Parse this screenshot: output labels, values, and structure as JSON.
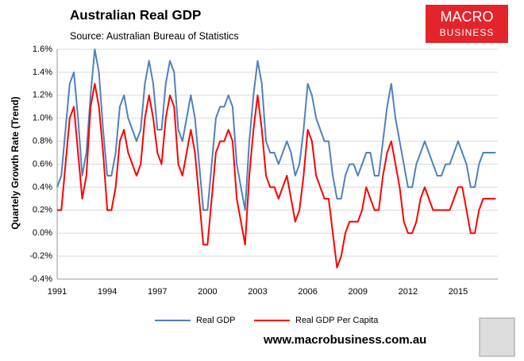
{
  "chart_data": {
    "type": "line",
    "title": "Australian Real GDP",
    "subtitle": "Source: Australian Bureau of Statistics",
    "ylabel": "Quartely Growth Rate (Trend)",
    "logo": [
      "MACRO",
      "BUSINESS"
    ],
    "website": "www.macrobusiness.com.au",
    "categories": [
      "1991",
      null,
      null,
      null,
      null,
      null,
      null,
      null,
      null,
      null,
      null,
      null,
      "1994",
      null,
      null,
      null,
      null,
      null,
      null,
      null,
      null,
      null,
      null,
      null,
      "1997",
      null,
      null,
      null,
      null,
      null,
      null,
      null,
      null,
      null,
      null,
      null,
      "2000",
      null,
      null,
      null,
      null,
      null,
      null,
      null,
      null,
      null,
      null,
      null,
      "2003",
      null,
      null,
      null,
      null,
      null,
      null,
      null,
      null,
      null,
      null,
      null,
      "2006",
      null,
      null,
      null,
      null,
      null,
      null,
      null,
      null,
      null,
      null,
      null,
      "2009",
      null,
      null,
      null,
      null,
      null,
      null,
      null,
      null,
      null,
      null,
      null,
      "2012",
      null,
      null,
      null,
      null,
      null,
      null,
      null,
      null,
      null,
      null,
      null,
      "2015",
      null,
      null,
      null,
      null,
      null,
      null,
      null,
      null,
      null
    ],
    "series": [
      {
        "name": "Real GDP",
        "color": "#4f81bd",
        "values": [
          0.4,
          0.5,
          0.9,
          1.3,
          1.4,
          1.0,
          0.5,
          0.7,
          1.2,
          1.6,
          1.4,
          0.9,
          0.5,
          0.5,
          0.7,
          1.1,
          1.2,
          1.0,
          0.9,
          0.8,
          0.9,
          1.3,
          1.5,
          1.3,
          0.9,
          0.9,
          1.3,
          1.5,
          1.4,
          0.9,
          0.8,
          1.0,
          1.2,
          1.0,
          0.6,
          0.2,
          0.2,
          0.6,
          1.0,
          1.1,
          1.1,
          1.2,
          1.1,
          0.6,
          0.4,
          0.2,
          0.8,
          1.2,
          1.5,
          1.3,
          0.8,
          0.7,
          0.7,
          0.6,
          0.7,
          0.8,
          0.7,
          0.5,
          0.6,
          0.9,
          1.3,
          1.2,
          1.0,
          0.9,
          0.8,
          0.8,
          0.5,
          0.3,
          0.3,
          0.5,
          0.6,
          0.6,
          0.5,
          0.6,
          0.7,
          0.7,
          0.5,
          0.5,
          0.8,
          1.1,
          1.3,
          1.0,
          0.8,
          0.6,
          0.4,
          0.4,
          0.6,
          0.7,
          0.8,
          0.7,
          0.6,
          0.5,
          0.5,
          0.6,
          0.6,
          0.7,
          0.8,
          0.7,
          0.6,
          0.4,
          0.4,
          0.6,
          0.7,
          0.7,
          0.7,
          0.7
        ]
      },
      {
        "name": "Real GDP Per Capita",
        "color": "#ff0000",
        "values": [
          0.2,
          0.2,
          0.6,
          1.0,
          1.1,
          0.7,
          0.3,
          0.5,
          1.1,
          1.3,
          1.1,
          0.7,
          0.2,
          0.2,
          0.4,
          0.8,
          0.9,
          0.7,
          0.6,
          0.5,
          0.6,
          1.0,
          1.2,
          1.0,
          0.7,
          0.6,
          1.0,
          1.2,
          1.1,
          0.6,
          0.5,
          0.7,
          0.9,
          0.7,
          0.3,
          -0.1,
          -0.1,
          0.3,
          0.7,
          0.8,
          0.8,
          0.9,
          0.8,
          0.3,
          0.1,
          -0.1,
          0.5,
          0.9,
          1.2,
          0.9,
          0.5,
          0.4,
          0.4,
          0.3,
          0.4,
          0.5,
          0.3,
          0.1,
          0.2,
          0.5,
          0.9,
          0.8,
          0.5,
          0.4,
          0.3,
          0.3,
          0.0,
          -0.3,
          -0.2,
          0.0,
          0.1,
          0.1,
          0.1,
          0.2,
          0.4,
          0.3,
          0.2,
          0.2,
          0.5,
          0.7,
          0.8,
          0.6,
          0.4,
          0.1,
          0.0,
          0.0,
          0.1,
          0.3,
          0.4,
          0.3,
          0.2,
          0.2,
          0.2,
          0.2,
          0.2,
          0.3,
          0.4,
          0.4,
          0.2,
          0.0,
          0.0,
          0.2,
          0.3,
          0.3,
          0.3,
          0.3
        ]
      }
    ],
    "ylim": [
      -0.4,
      1.6
    ],
    "yticks": [
      {
        "value": -0.4,
        "label": "-0.4%"
      },
      {
        "value": -0.2,
        "label": "-0.2%"
      },
      {
        "value": 0,
        "label": "0.0%"
      },
      {
        "value": 0.2,
        "label": "0.2%"
      },
      {
        "value": 0.4,
        "label": "0.4%"
      },
      {
        "value": 0.6,
        "label": "0.6%"
      },
      {
        "value": 0.8,
        "label": "0.8%"
      },
      {
        "value": 1.0,
        "label": "1.0%"
      },
      {
        "value": 1.2,
        "label": "1.2%"
      },
      {
        "value": 1.4,
        "label": "1.4%"
      },
      {
        "value": 1.6,
        "label": "1.6%"
      }
    ],
    "grid": true
  }
}
